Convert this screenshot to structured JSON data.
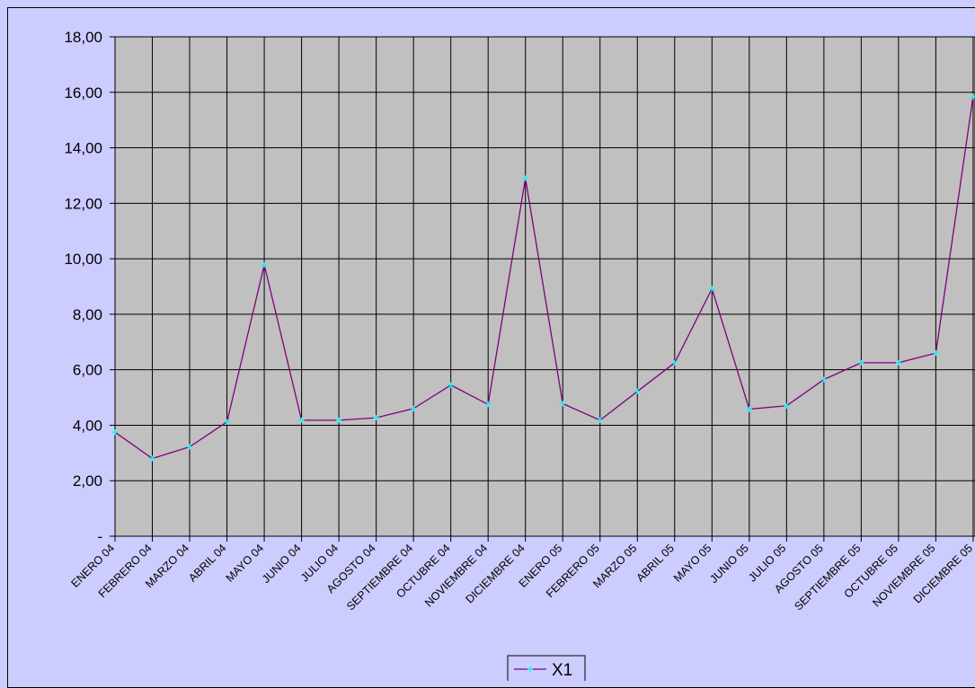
{
  "chart_data": {
    "type": "line",
    "title": "",
    "xlabel": "",
    "ylabel": "",
    "ylim": [
      0,
      18
    ],
    "yticks": [
      {
        "value": 0,
        "label": "-"
      },
      {
        "value": 2,
        "label": "2,00"
      },
      {
        "value": 4,
        "label": "4,00"
      },
      {
        "value": 6,
        "label": "6,00"
      },
      {
        "value": 8,
        "label": "8,00"
      },
      {
        "value": 10,
        "label": "10,00"
      },
      {
        "value": 12,
        "label": "12,00"
      },
      {
        "value": 14,
        "label": "14,00"
      },
      {
        "value": 16,
        "label": "16,00"
      },
      {
        "value": 18,
        "label": "18,00"
      }
    ],
    "grid": true,
    "plot_background": "#c0c0c0",
    "chart_background": "#ccccff",
    "legend_position": "bottom-center",
    "categories": [
      "ENERO 04",
      "FEBRERO 04",
      "MARZO 04",
      "ABRIL 04",
      "MAYO 04",
      "JUNIO 04",
      "JULIO 04",
      "AGOSTO 04",
      "SEPTIEMBRE 04",
      "OCTUBRE 04",
      "NOVIEMBRE 04",
      "DICIEMBRE 04",
      "ENERO 05",
      "FEBRERO 05",
      "MARZO 05",
      "ABRIL 05",
      "MAYO 05",
      "JUNIO 05",
      "JULIO 05",
      "AGOSTO 05",
      "SEPTIEMBRE 05",
      "OCTUBRE 05",
      "NOVIEMBRE 05",
      "DICIEMBRE 05"
    ],
    "series": [
      {
        "name": "X1",
        "line_color": "#800080",
        "marker_color": "#00ffff",
        "values": [
          3.75,
          2.8,
          3.22,
          4.12,
          9.78,
          4.18,
          4.18,
          4.27,
          4.6,
          5.45,
          4.75,
          12.9,
          4.78,
          4.18,
          5.22,
          6.25,
          8.92,
          4.58,
          4.7,
          5.65,
          6.25,
          6.25,
          6.6,
          15.85
        ]
      }
    ]
  }
}
